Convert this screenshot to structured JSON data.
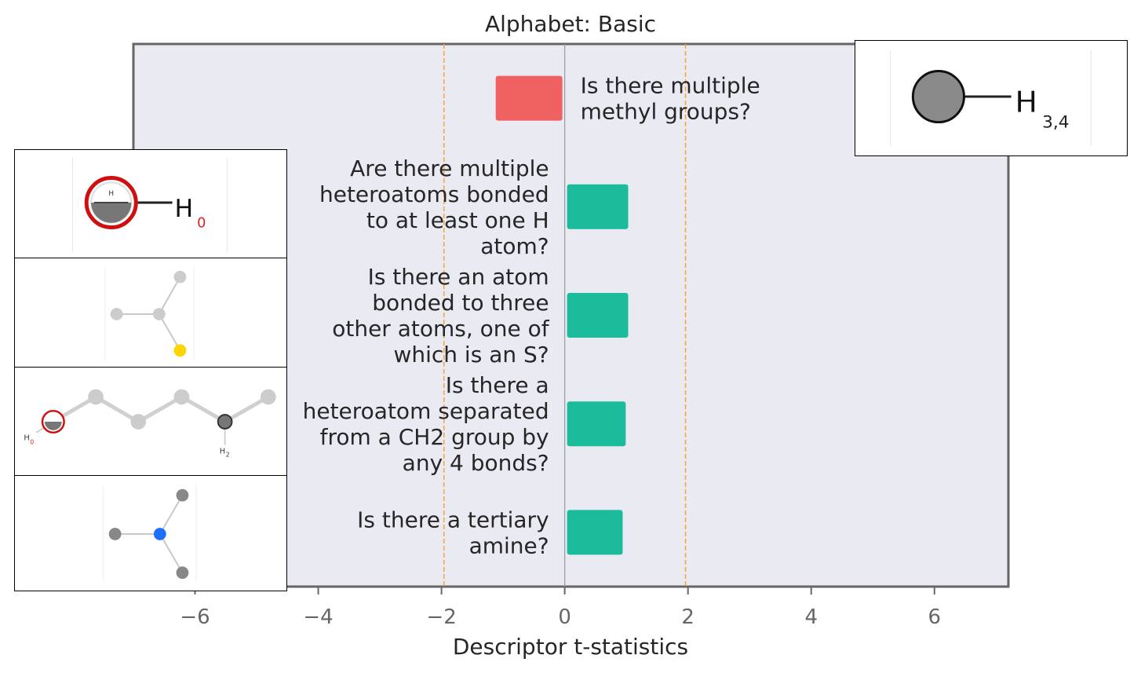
{
  "chart_data": {
    "type": "bar",
    "orientation": "horizontal",
    "title": "Alphabet: Basic",
    "xlabel": "Descriptor t-statistics",
    "ylabel": "",
    "xlim": [
      -7.0,
      7.2
    ],
    "xticks": [
      -6,
      -4,
      -2,
      0,
      2,
      4,
      6
    ],
    "xtick_labels": [
      "−6",
      "−4",
      "−2",
      "0",
      "2",
      "4",
      "6"
    ],
    "threshold_lines": [
      -1.96,
      1.96
    ],
    "grid": false,
    "categories": [
      "Is there multiple methyl groups?",
      "Are there multiple heteroatoms bonded to at least one H atom?",
      "Is there an atom bonded to three other atoms, one of which is an S?",
      "Is there a heteroatom separated from a CH2 group by any 4 bonds?",
      "Is there a tertiary amine?"
    ],
    "label_lines": [
      [
        "Is there multiple",
        "methyl groups?"
      ],
      [
        "Are there multiple",
        "heteroatoms bonded",
        "to at least one H",
        "atom?"
      ],
      [
        "Is there an atom",
        "bonded to three",
        "other atoms, one of",
        "which is an S?"
      ],
      [
        "Is there a",
        "heteroatom separated",
        "from a CH2 group by",
        "any 4 bonds?"
      ],
      [
        "Is there a tertiary",
        "amine?"
      ]
    ],
    "values": [
      -1.12,
      1.03,
      1.03,
      0.99,
      0.94
    ],
    "colors": {
      "negative": "#f06262",
      "positive": "#1abc9c",
      "threshold": "#f5a43a",
      "plot_bg": "#eaeaf2",
      "frame": "#666666"
    }
  },
  "insets": {
    "top_right": {
      "atom_label": "H",
      "subscript": "3,4"
    },
    "left_1": {
      "atom_label": "H",
      "subscript": "0",
      "badge": "H"
    },
    "left_3": {
      "ring_label": "H",
      "ring_sub": "0",
      "node_label": "H",
      "node_sub": "2"
    }
  }
}
